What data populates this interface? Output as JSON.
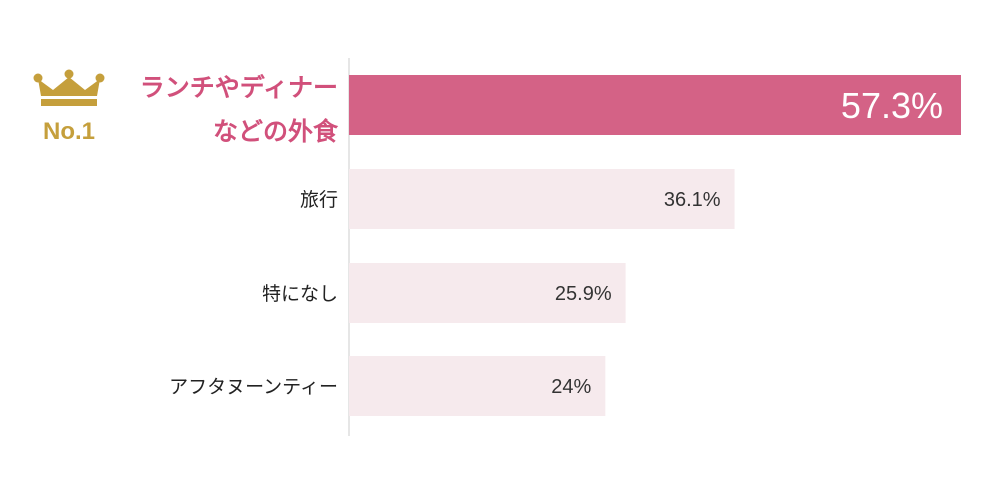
{
  "badge": {
    "rank_label": "No.1",
    "icon": "crown-icon"
  },
  "colors": {
    "top_bar": "#d46286",
    "other_bar": "#f6eaed",
    "top_label": "#d1507b",
    "crown": "#c59f3c",
    "axis": "#dddddd"
  },
  "chart_data": {
    "type": "bar",
    "orientation": "horizontal",
    "categories": [
      [
        "ランチやディナー",
        "などの外食"
      ],
      [
        "旅行"
      ],
      [
        "特になし"
      ],
      [
        "アフタヌーンティー"
      ]
    ],
    "values": [
      57.3,
      36.1,
      25.9,
      24
    ],
    "value_labels": [
      "57.3%",
      "36.1%",
      "25.9%",
      "24%"
    ],
    "xlim": [
      0,
      57.3
    ],
    "highlight_index": 0,
    "grid": false,
    "legend": "none"
  }
}
